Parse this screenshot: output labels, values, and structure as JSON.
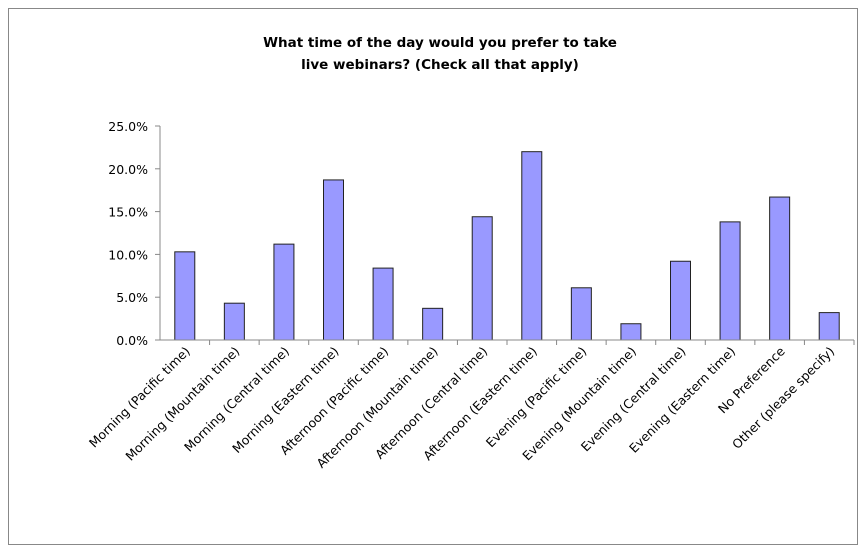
{
  "chart_data": {
    "type": "bar",
    "title": "What time of the day would you prefer to take live webinars? (Check all that apply)",
    "categories": [
      "Morning (Pacific time)",
      "Morning (Mountain time)",
      "Morning (Central time)",
      "Morning (Eastern time)",
      "Afternoon (Pacific time)",
      "Afternoon (Mountain time)",
      "Afternoon (Central time)",
      "Afternoon (Eastern time)",
      "Evening (Pacific time)",
      "Evening (Mountain time)",
      "Evening (Central time)",
      "Evening (Eastern time)",
      "No Preference",
      "Other (please specify)"
    ],
    "values": [
      10.3,
      4.3,
      11.2,
      18.7,
      8.4,
      3.7,
      14.4,
      22.0,
      6.1,
      1.9,
      9.2,
      13.8,
      16.7,
      3.2
    ],
    "color": "#9999ff",
    "ylim": [
      0,
      25
    ],
    "yticks": [
      {
        "value": 0,
        "label": "0.0%"
      },
      {
        "value": 5,
        "label": "5.0%"
      },
      {
        "value": 10,
        "label": "10.0%"
      },
      {
        "value": 15,
        "label": "15.0%"
      },
      {
        "value": 20,
        "label": "20.0%"
      },
      {
        "value": 25,
        "label": "25.0%"
      }
    ],
    "grid": false
  }
}
